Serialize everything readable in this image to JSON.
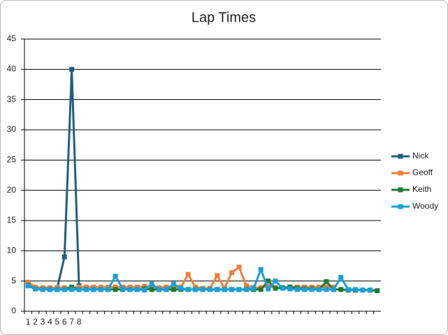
{
  "chart_data": {
    "type": "line",
    "title": "Lap Times",
    "categories": [
      "1",
      "2",
      "3",
      "4",
      "5",
      "6",
      "7",
      "8",
      null,
      null,
      null,
      null,
      null,
      null,
      null,
      null,
      null,
      null,
      null,
      null,
      null,
      null,
      null,
      null,
      null,
      null,
      null,
      null,
      null,
      null,
      null,
      null,
      null,
      null,
      null,
      null,
      null,
      null,
      null,
      null,
      null,
      null,
      null,
      null,
      null,
      null,
      null,
      null,
      null
    ],
    "series": [
      {
        "name": "Nick",
        "color": "#1f5f80",
        "values": [
          4.5,
          3.8,
          3.8,
          3.8,
          3.8,
          9,
          40,
          4.2,
          null,
          null,
          null,
          null,
          null,
          null,
          null,
          null,
          null,
          null,
          null,
          null,
          null,
          null,
          null,
          null,
          null,
          null,
          null,
          null,
          null,
          null,
          null,
          null,
          null,
          null,
          null,
          null,
          null,
          null,
          null,
          null,
          null,
          null,
          null,
          null,
          null,
          null,
          null,
          null,
          null
        ]
      },
      {
        "name": "Geoff",
        "color": "#f07f3a",
        "values": [
          4.8,
          4.0,
          3.9,
          3.9,
          3.9,
          3.9,
          3.9,
          4.0,
          4.0,
          4.0,
          4.0,
          4.0,
          4.0,
          4.0,
          4.0,
          4.0,
          4.1,
          4.1,
          3.9,
          4.0,
          4.0,
          4.0,
          6.1,
          4.0,
          3.8,
          3.8,
          5.9,
          3.8,
          6.4,
          7.3,
          4.2,
          3.9,
          3.9,
          4.1,
          3.9,
          3.9,
          4.0,
          4.0,
          4.0,
          4.0,
          4.0,
          4.0,
          4.0,
          null,
          null,
          null,
          null,
          null,
          null
        ]
      },
      {
        "name": "Keith",
        "color": "#1e7a34",
        "values": [
          4.3,
          3.7,
          3.6,
          3.6,
          3.6,
          3.6,
          4.0,
          3.6,
          3.6,
          3.6,
          3.6,
          3.6,
          3.6,
          3.6,
          3.6,
          3.6,
          3.7,
          3.6,
          3.6,
          3.6,
          3.6,
          3.6,
          3.6,
          3.6,
          3.6,
          3.6,
          3.6,
          3.6,
          3.6,
          3.6,
          3.6,
          3.6,
          3.6,
          5.0,
          3.8,
          3.9,
          4.0,
          3.8,
          3.7,
          3.7,
          3.6,
          4.9,
          3.6,
          3.6,
          3.5,
          3.5,
          3.5,
          3.5,
          3.4
        ]
      },
      {
        "name": "Woody",
        "color": "#1aa0d8",
        "values": [
          4.2,
          3.7,
          3.6,
          3.6,
          3.6,
          3.6,
          3.6,
          3.6,
          3.6,
          3.6,
          3.6,
          3.6,
          5.8,
          3.7,
          3.6,
          3.6,
          3.5,
          4.5,
          3.6,
          3.6,
          4.5,
          3.8,
          3.6,
          3.6,
          3.6,
          3.6,
          3.6,
          3.6,
          3.6,
          3.6,
          3.6,
          3.8,
          6.9,
          3.7,
          5.0,
          3.8,
          3.7,
          3.6,
          3.6,
          3.6,
          3.6,
          3.6,
          3.6,
          5.6,
          3.6,
          3.6,
          3.5,
          3.5,
          null
        ]
      }
    ],
    "ylim": [
      0,
      45
    ],
    "yticks": [
      0,
      5,
      10,
      15,
      20,
      25,
      30,
      35,
      40,
      45
    ],
    "grid": true
  }
}
